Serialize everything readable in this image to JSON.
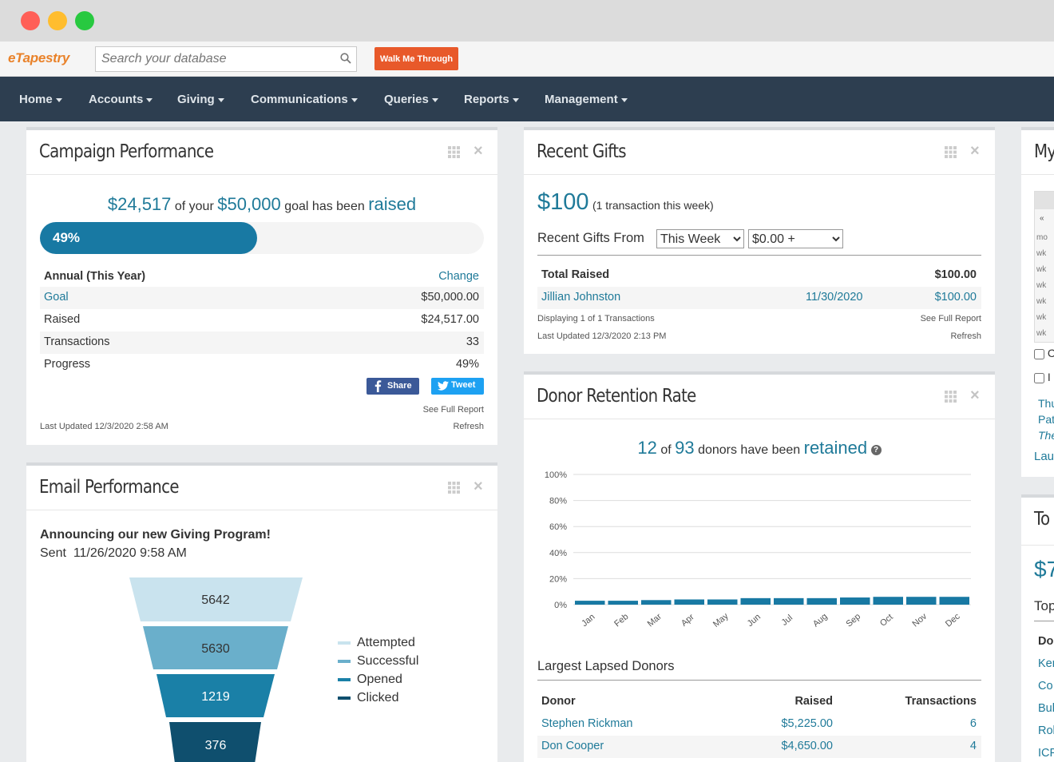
{
  "app": {
    "logo": "eTapestry"
  },
  "search": {
    "placeholder": "Search your database"
  },
  "walk_button": "Walk Me Through",
  "nav": [
    "Home",
    "Accounts",
    "Giving",
    "Communications",
    "Queries",
    "Reports",
    "Management"
  ],
  "campaign": {
    "title": "Campaign Performance",
    "raised_amount": "$24,517",
    "text_of_your": "of your",
    "goal_amount": "$50,000",
    "text_goal": "goal has been",
    "text_raised": "raised",
    "progress_label": "49%",
    "progress_fraction": 0.49,
    "period": "Annual (This Year)",
    "change": "Change",
    "rows": [
      {
        "label": "Goal",
        "value": "$50,000.00"
      },
      {
        "label": "Raised",
        "value": "$24,517.00"
      },
      {
        "label": "Transactions",
        "value": "33"
      },
      {
        "label": "Progress",
        "value": "49%"
      }
    ],
    "share": "Share",
    "tweet": "Tweet",
    "full_report": "See Full Report",
    "updated": "Last Updated 12/3/2020 2:58 AM",
    "refresh": "Refresh"
  },
  "email": {
    "title": "Email Performance",
    "subject": "Announcing our new Giving Program!",
    "sent_label": "Sent",
    "sent_date": "11/26/2020 9:58 AM",
    "funnel": [
      {
        "label": "Attempted",
        "value": "5642",
        "color": "#c9e3ee"
      },
      {
        "label": "Successful",
        "value": "5630",
        "color": "#6aafcb"
      },
      {
        "label": "Opened",
        "value": "1219",
        "color": "#1a80a7"
      },
      {
        "label": "Clicked",
        "value": "376",
        "color": "#0f4f6e"
      }
    ]
  },
  "gifts": {
    "title": "Recent Gifts",
    "amount": "$100",
    "summary": "(1 transaction this week)",
    "from_label": "Recent Gifts From",
    "period_select": "This Week",
    "amount_select": "$0.00 +",
    "total_label": "Total Raised",
    "total_value": "$100.00",
    "donor": "Jillian Johnston",
    "date": "11/30/2020",
    "donor_amount": "$100.00",
    "displaying": "Displaying 1 of 1 Transactions",
    "full_report": "See Full Report",
    "updated": "Last Updated 12/3/2020 2:13 PM",
    "refresh": "Refresh"
  },
  "retention": {
    "title": "Donor Retention Rate",
    "retained_count": "12",
    "text_of": "of",
    "total_count": "93",
    "text_donors": "donors have been",
    "text_retained": "retained",
    "lapsed_title": "Largest Lapsed Donors",
    "columns": [
      "Donor",
      "Raised",
      "Transactions"
    ],
    "lapsed": [
      {
        "donor": "Stephen Rickman",
        "raised": "$5,225.00",
        "transactions": "6"
      },
      {
        "donor": "Don Cooper",
        "raised": "$4,650.00",
        "transactions": "4"
      }
    ]
  },
  "chart_data": {
    "type": "bar",
    "categories": [
      "Jan",
      "Feb",
      "Mar",
      "Apr",
      "May",
      "Jun",
      "Jul",
      "Aug",
      "Sep",
      "Oct",
      "Nov",
      "Dec"
    ],
    "values": [
      3,
      3,
      3.5,
      4,
      4,
      5,
      5,
      5,
      5.5,
      6,
      6,
      6
    ],
    "y_ticks": [
      "100%",
      "80%",
      "60%",
      "40%",
      "20%",
      "0%"
    ],
    "ylim": [
      0,
      100
    ],
    "bar_color": "#1879a3",
    "grid": true
  },
  "right_panel": {
    "title_partial": "My",
    "cal_cells": [
      "mo",
      "wk",
      "wk",
      "wk",
      "wk",
      "wk",
      "wk"
    ],
    "check1": "C",
    "check2": "I",
    "links": [
      "Thu",
      "Pat",
      "The",
      "Lau"
    ],
    "title2_partial": "To",
    "amount_partial": "$7",
    "sub_partial": "Top",
    "col_partial": "Do",
    "rows_partial": [
      "Ker",
      "Co",
      "Bul",
      "Rol",
      "ICP"
    ]
  }
}
